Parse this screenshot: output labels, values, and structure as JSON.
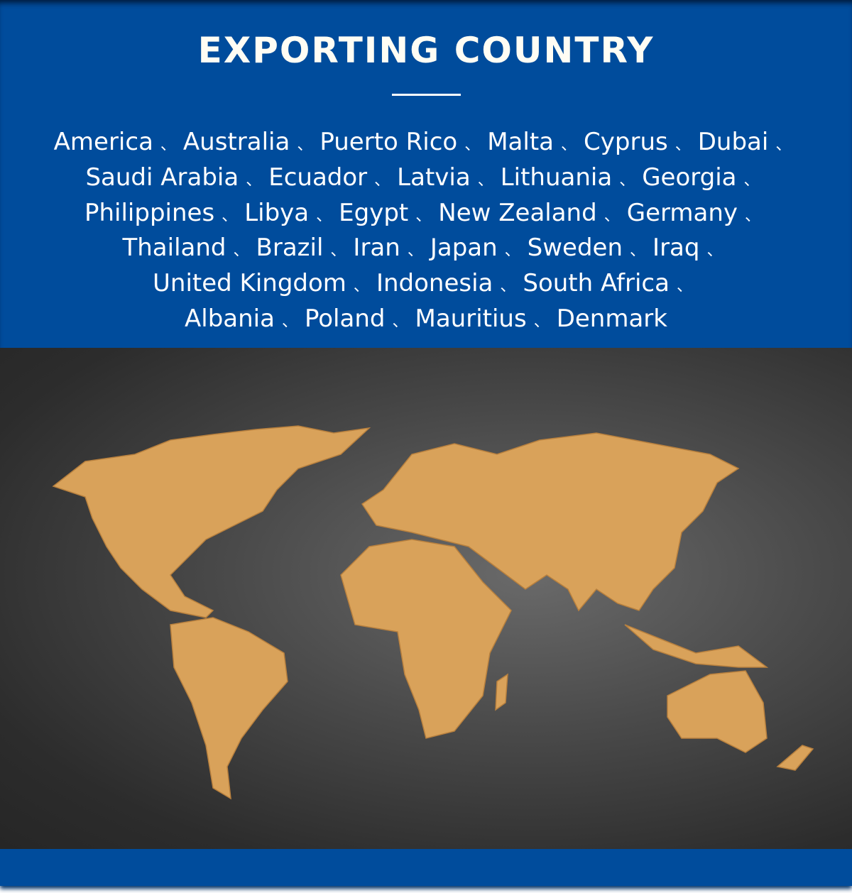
{
  "header": {
    "title": "EXPORTING COUNTRY",
    "separator": "、",
    "country_lines": [
      [
        "America",
        "Australia",
        "Puerto Rico",
        "Malta",
        "Cyprus",
        "Dubai"
      ],
      [
        "Saudi Arabia",
        "Ecuador",
        "Latvia",
        "Lithuania",
        "Georgia"
      ],
      [
        "Philippines",
        "Libya",
        "Egypt",
        "New Zealand",
        "Germany"
      ],
      [
        "Thailand",
        "Brazil",
        "Iran",
        "Japan",
        "Sweden",
        "Iraq"
      ],
      [
        "United Kingdom",
        "Indonesia",
        "South Africa"
      ],
      [
        "Albania",
        "Poland",
        "Mauritius",
        "Denmark"
      ]
    ]
  },
  "colors": {
    "brand_blue": "#004c9c",
    "map_land": "#d9a25a",
    "map_background": "#3a3a3a"
  }
}
